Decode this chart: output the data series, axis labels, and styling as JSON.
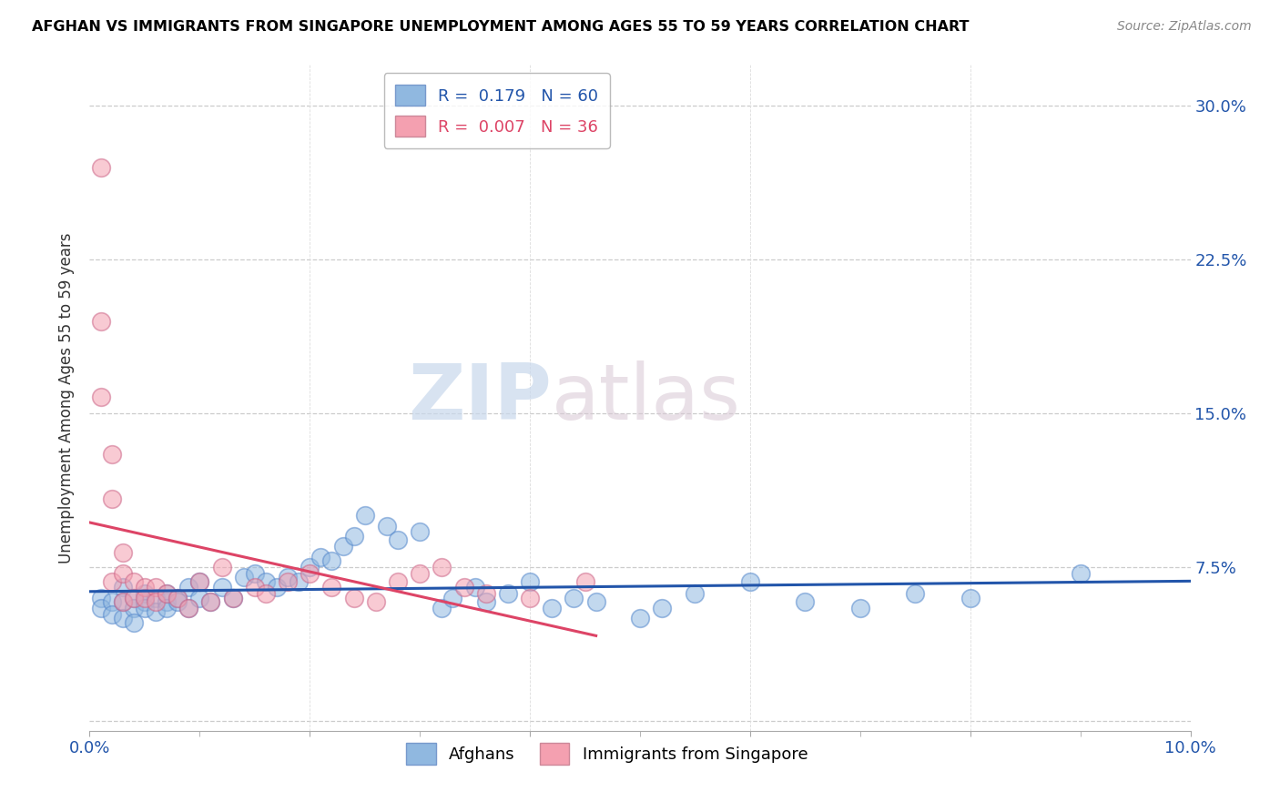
{
  "title": "AFGHAN VS IMMIGRANTS FROM SINGAPORE UNEMPLOYMENT AMONG AGES 55 TO 59 YEARS CORRELATION CHART",
  "source": "Source: ZipAtlas.com",
  "ylabel": "Unemployment Among Ages 55 to 59 years",
  "xlim": [
    0.0,
    0.1
  ],
  "ylim": [
    -0.005,
    0.32
  ],
  "xticks": [
    0.0,
    0.02,
    0.04,
    0.06,
    0.08,
    0.1
  ],
  "xticklabels": [
    "0.0%",
    "",
    "",
    "",
    "",
    "10.0%"
  ],
  "yticks": [
    0.0,
    0.075,
    0.15,
    0.225,
    0.3
  ],
  "yticklabels": [
    "",
    "7.5%",
    "15.0%",
    "22.5%",
    "30.0%"
  ],
  "blue_R": "0.179",
  "blue_N": "60",
  "pink_R": "0.007",
  "pink_N": "36",
  "blue_color": "#90B8E0",
  "pink_color": "#F4A0B0",
  "blue_line_color": "#2255AA",
  "pink_line_color": "#DD4466",
  "watermark_zip": "ZIP",
  "watermark_atlas": "atlas",
  "blue_scatter_x": [
    0.001,
    0.001,
    0.002,
    0.002,
    0.003,
    0.003,
    0.003,
    0.004,
    0.004,
    0.004,
    0.005,
    0.005,
    0.005,
    0.006,
    0.006,
    0.007,
    0.007,
    0.007,
    0.008,
    0.008,
    0.009,
    0.009,
    0.01,
    0.01,
    0.011,
    0.012,
    0.013,
    0.014,
    0.015,
    0.016,
    0.017,
    0.018,
    0.019,
    0.02,
    0.021,
    0.022,
    0.023,
    0.024,
    0.025,
    0.027,
    0.028,
    0.03,
    0.032,
    0.033,
    0.035,
    0.036,
    0.038,
    0.04,
    0.042,
    0.044,
    0.046,
    0.05,
    0.052,
    0.055,
    0.06,
    0.065,
    0.07,
    0.075,
    0.08,
    0.09
  ],
  "blue_scatter_y": [
    0.06,
    0.055,
    0.058,
    0.052,
    0.065,
    0.058,
    0.05,
    0.06,
    0.055,
    0.048,
    0.062,
    0.058,
    0.055,
    0.06,
    0.053,
    0.058,
    0.062,
    0.055,
    0.06,
    0.058,
    0.065,
    0.055,
    0.06,
    0.068,
    0.058,
    0.065,
    0.06,
    0.07,
    0.072,
    0.068,
    0.065,
    0.07,
    0.068,
    0.075,
    0.08,
    0.078,
    0.085,
    0.09,
    0.1,
    0.095,
    0.088,
    0.092,
    0.055,
    0.06,
    0.065,
    0.058,
    0.062,
    0.068,
    0.055,
    0.06,
    0.058,
    0.05,
    0.055,
    0.062,
    0.068,
    0.058,
    0.055,
    0.062,
    0.06,
    0.072
  ],
  "pink_scatter_x": [
    0.001,
    0.001,
    0.001,
    0.002,
    0.002,
    0.002,
    0.003,
    0.003,
    0.003,
    0.004,
    0.004,
    0.005,
    0.005,
    0.006,
    0.006,
    0.007,
    0.008,
    0.009,
    0.01,
    0.011,
    0.012,
    0.013,
    0.015,
    0.016,
    0.018,
    0.02,
    0.022,
    0.024,
    0.026,
    0.028,
    0.03,
    0.032,
    0.034,
    0.036,
    0.04,
    0.045
  ],
  "pink_scatter_y": [
    0.27,
    0.195,
    0.158,
    0.13,
    0.108,
    0.068,
    0.082,
    0.072,
    0.058,
    0.068,
    0.06,
    0.065,
    0.06,
    0.065,
    0.058,
    0.062,
    0.06,
    0.055,
    0.068,
    0.058,
    0.075,
    0.06,
    0.065,
    0.062,
    0.068,
    0.072,
    0.065,
    0.06,
    0.058,
    0.068,
    0.072,
    0.075,
    0.065,
    0.062,
    0.06,
    0.068
  ]
}
